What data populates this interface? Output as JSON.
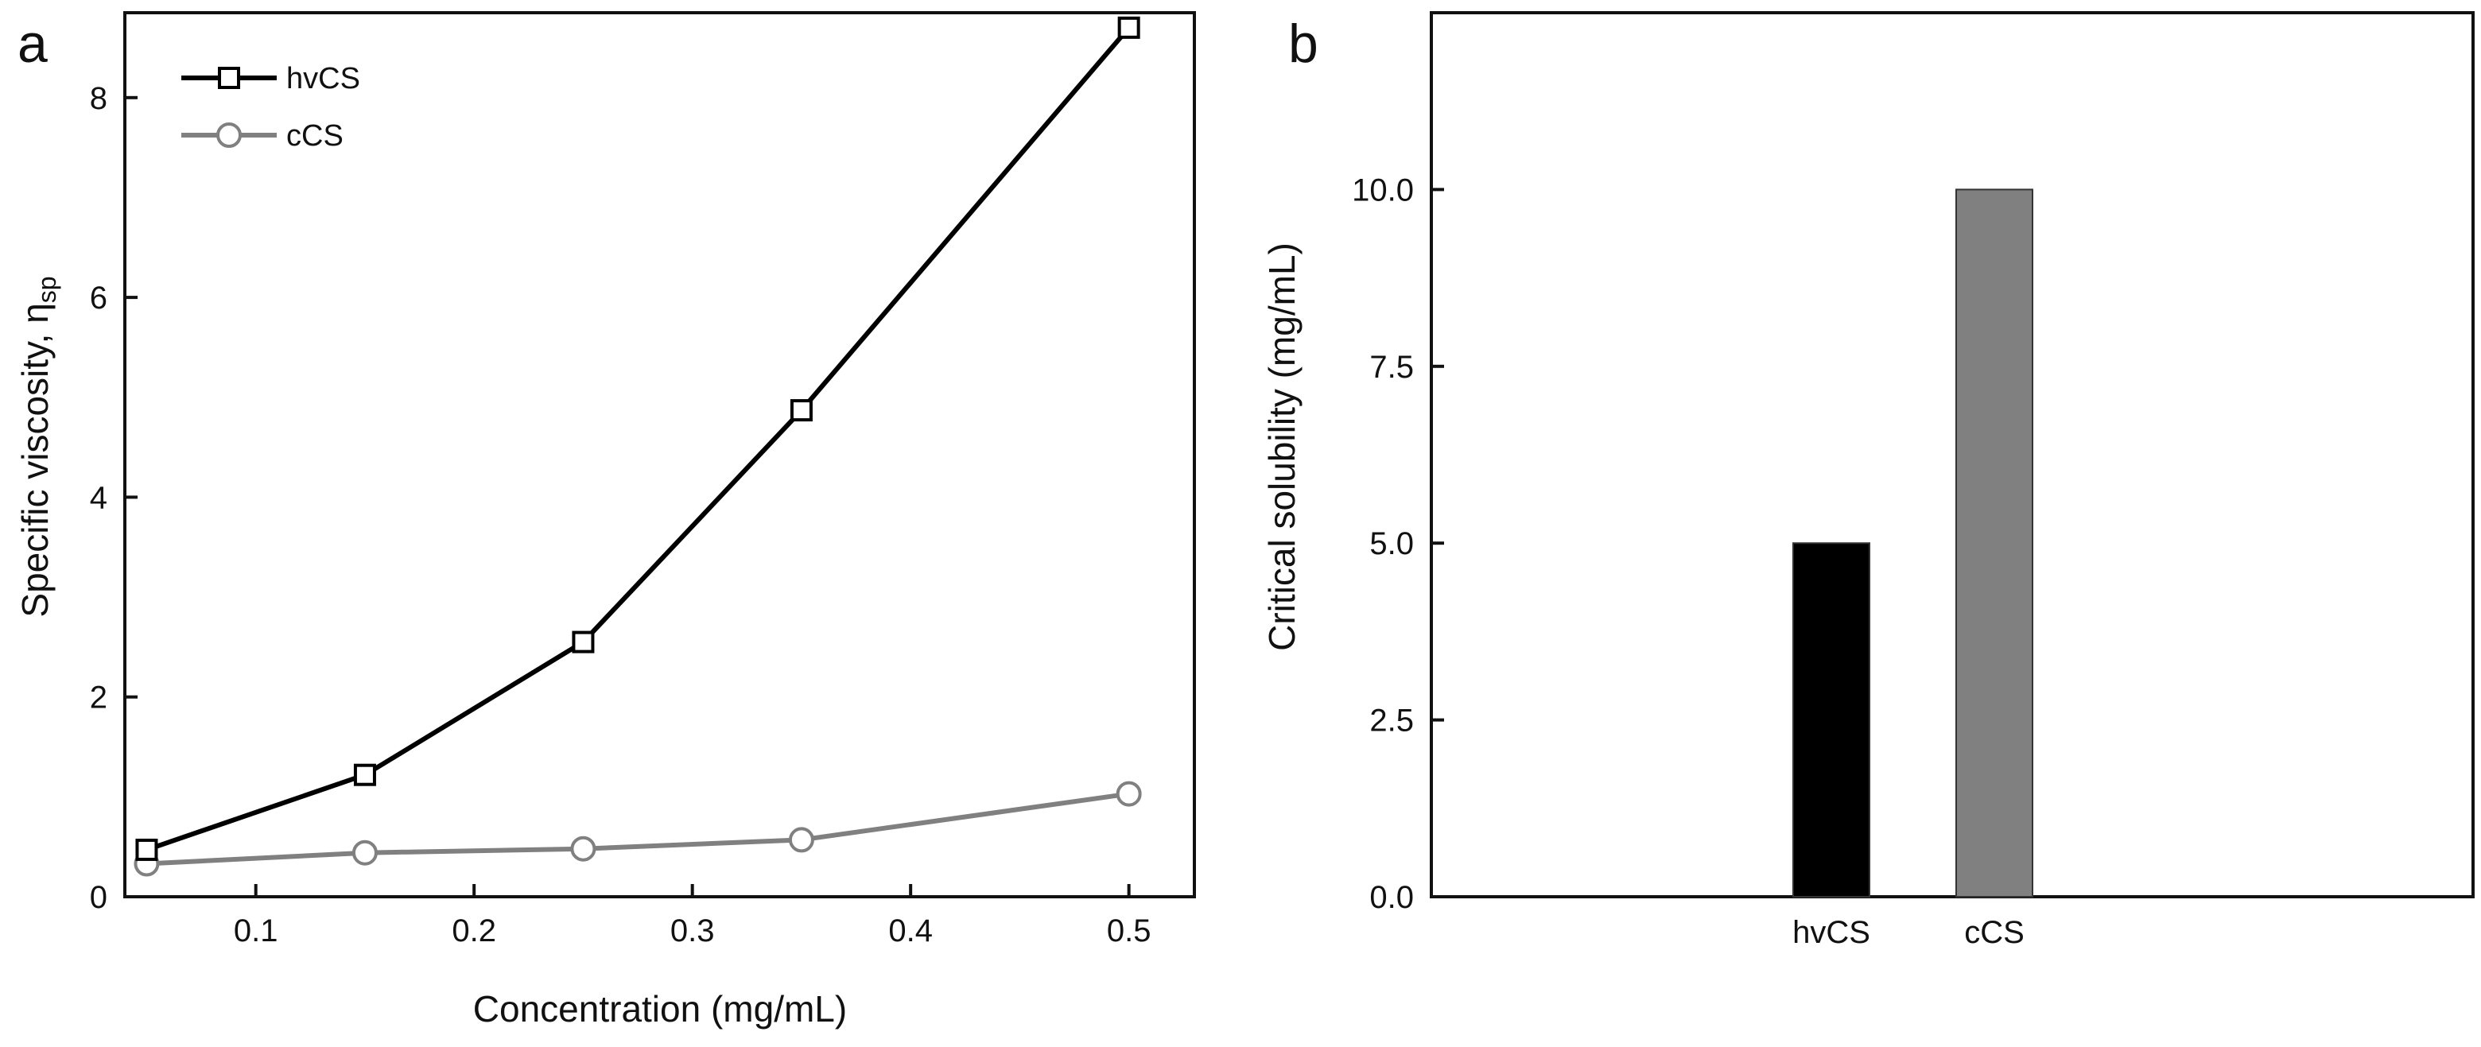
{
  "colors": {
    "hvcs": "#000000",
    "ccs": "#808080",
    "axis": "#111111"
  },
  "chart_data": [
    {
      "type": "line",
      "panel_label": "a",
      "title": "",
      "xlabel": "Concentration (mg/mL)",
      "ylabel": "Specific viscosity, η",
      "ylabel_sub": "sp",
      "x": [
        0.05,
        0.15,
        0.25,
        0.35,
        0.5
      ],
      "xlim": [
        0.04,
        0.53
      ],
      "ylim": [
        0,
        8.85
      ],
      "xticks": [
        0.1,
        0.2,
        0.3,
        0.4,
        0.5
      ],
      "xtick_labels": [
        "0.1",
        "0.2",
        "0.3",
        "0.4",
        "0.5"
      ],
      "yticks": [
        0,
        2,
        4,
        6,
        8
      ],
      "ytick_labels": [
        "0",
        "2",
        "4",
        "6",
        "8"
      ],
      "grid": false,
      "legend": "top-left",
      "series": [
        {
          "name": "hvCS",
          "marker": "square",
          "values": [
            0.47,
            1.22,
            2.55,
            4.87,
            8.7
          ]
        },
        {
          "name": "cCS",
          "marker": "circle",
          "values": [
            0.33,
            0.44,
            0.48,
            0.57,
            1.03
          ]
        }
      ]
    },
    {
      "type": "bar",
      "panel_label": "b",
      "title": "",
      "xlabel": "",
      "ylabel": "Critical solubility (mg/mL)",
      "categories": [
        "hvCS",
        "cCS"
      ],
      "values": [
        5.0,
        10.0
      ],
      "ylim": [
        0,
        12.5
      ],
      "yticks": [
        0,
        2.5,
        5,
        7.5,
        10
      ],
      "ytick_labels": [
        "0.0",
        "2.5",
        "5.0",
        "7.5",
        "10.0"
      ],
      "grid": false
    }
  ]
}
